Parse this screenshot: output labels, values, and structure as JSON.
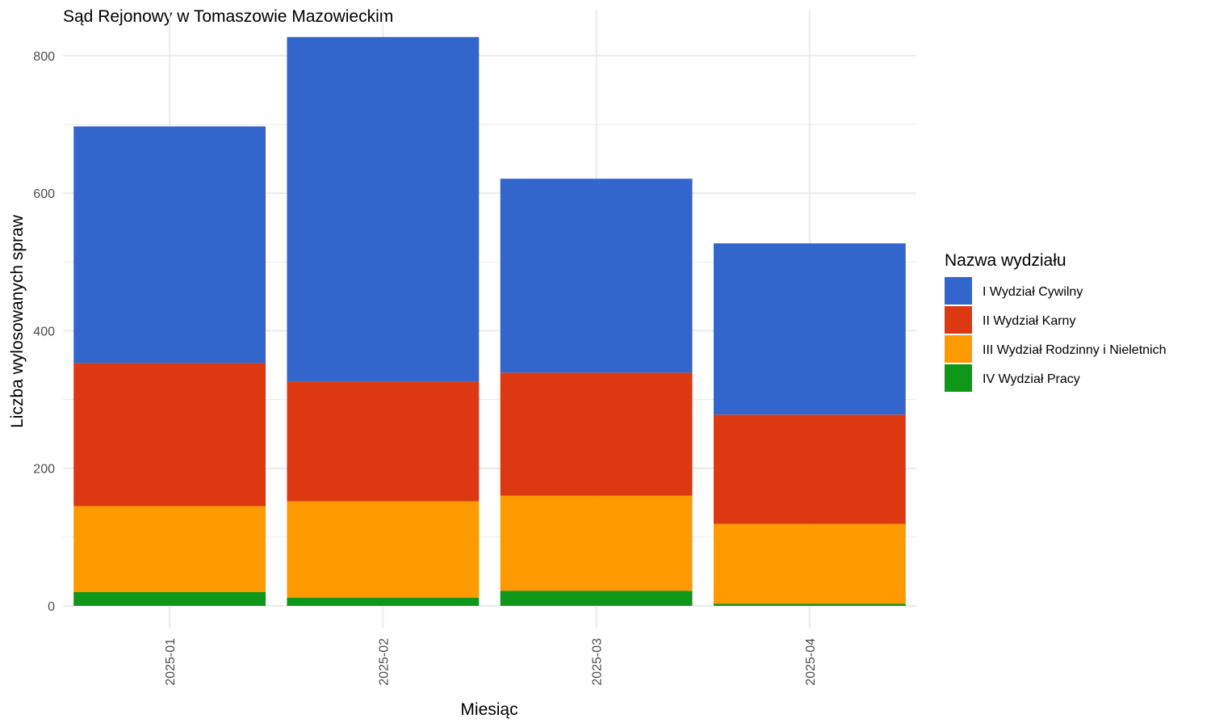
{
  "chart_data": {
    "type": "bar",
    "stacked": true,
    "title": "Sąd Rejonowy w Tomaszowie Mazowieckim",
    "xlabel": "Miesiąc",
    "ylabel": "Liczba wylosowanych spraw",
    "categories": [
      "2025-01",
      "2025-02",
      "2025-03",
      "2025-04"
    ],
    "ylim": [
      -30,
      830
    ],
    "yticks": [
      0,
      200,
      400,
      600,
      800
    ],
    "grid": true,
    "legend": {
      "title": "Nazwa wydziału",
      "position": "right"
    },
    "series": [
      {
        "name": "IV Wydział Pracy",
        "color": "#109618",
        "values": [
          20,
          12,
          22,
          3
        ]
      },
      {
        "name": "III Wydział Rodzinny i Nieletnich",
        "color": "#FF9900",
        "values": [
          125,
          140,
          138,
          116
        ]
      },
      {
        "name": "II Wydział Karny",
        "color": "#DC3912",
        "values": [
          208,
          174,
          179,
          159
        ]
      },
      {
        "name": "I Wydział Cywilny",
        "color": "#3366CC",
        "values": [
          344,
          501,
          282,
          249
        ]
      }
    ],
    "legend_order": [
      "I Wydział Cywilny",
      "II Wydział Karny",
      "III Wydział Rodzinny i Nieletnich",
      "IV Wydział Pracy"
    ]
  }
}
